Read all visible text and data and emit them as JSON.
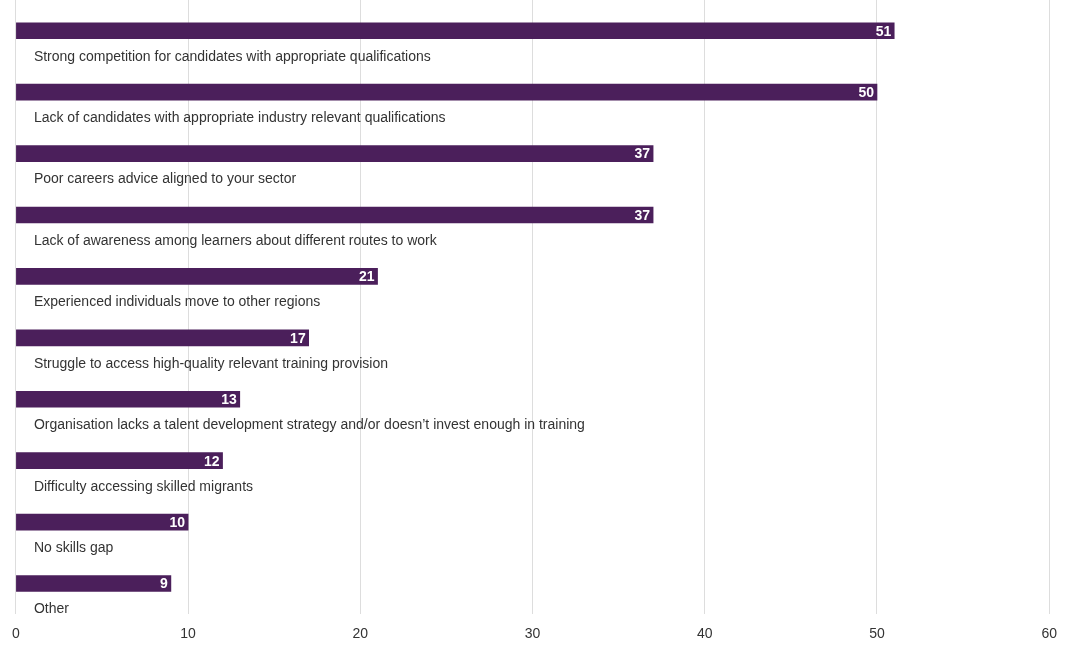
{
  "chart_data": {
    "type": "bar",
    "orientation": "horizontal",
    "categories": [
      "Strong competition for candidates with appropriate qualifications",
      "Lack of candidates with appropriate industry relevant qualifications",
      "Poor careers advice aligned to your sector",
      "Lack of awareness among learners about different routes to work",
      "Experienced individuals move to other regions",
      "Struggle to access high-quality relevant training provision",
      "Organisation lacks a talent development strategy and/or doesn’t invest enough in training",
      "Difficulty accessing skilled migrants",
      "No skills gap",
      "Other"
    ],
    "values": [
      51,
      50,
      37,
      37,
      21,
      17,
      13,
      12,
      10,
      9
    ],
    "color": "#4b1f5b",
    "xlim": [
      0,
      60
    ],
    "xticks": [
      0,
      10,
      20,
      30,
      40,
      50,
      60
    ],
    "grid": "x",
    "legend": false,
    "data_labels": true
  }
}
